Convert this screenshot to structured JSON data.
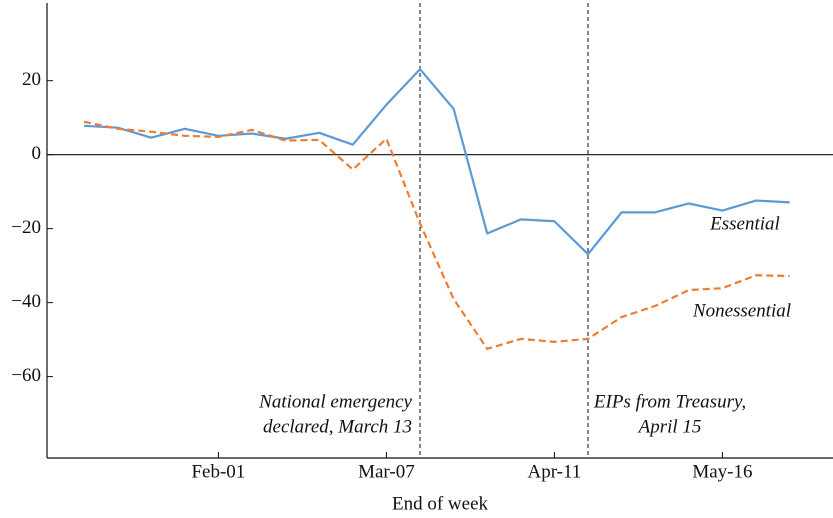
{
  "chart_data": {
    "type": "line",
    "x_label": "End of week",
    "categories": [
      null,
      null,
      null,
      null,
      "Feb-01",
      null,
      null,
      null,
      null,
      "Mar-07",
      null,
      null,
      null,
      null,
      "Apr-11",
      null,
      null,
      null,
      null,
      "May-16",
      null,
      null
    ],
    "series": [
      {
        "name": "Essential",
        "color": "#5b9bd5",
        "dash": false,
        "values": [
          7.8,
          7.3,
          4.6,
          7.0,
          5.1,
          5.7,
          4.3,
          5.9,
          2.7,
          13.5,
          23.1,
          12.4,
          -21.3,
          -17.5,
          -18.0,
          -26.9,
          -15.6,
          -15.6,
          -13.2,
          -15.1,
          -12.4,
          -12.9
        ]
      },
      {
        "name": "Nonessential",
        "color": "#ed7d31",
        "dash": true,
        "values": [
          8.9,
          7.0,
          6.2,
          5.1,
          4.8,
          6.7,
          3.8,
          4.0,
          -4.0,
          4.3,
          -18.6,
          -39.0,
          -52.5,
          -49.8,
          -50.6,
          -49.8,
          -43.9,
          -40.9,
          -36.6,
          -36.1,
          -32.6,
          -32.8
        ]
      }
    ],
    "annotations": [
      {
        "lines": [
          "National emergency",
          "declared, March 13"
        ]
      },
      {
        "lines": [
          "EIPs from Treasury,",
          "April 15"
        ]
      }
    ],
    "ylim": [
      -82,
      41
    ],
    "yticks": [
      {
        "value": -60,
        "label": "−60"
      },
      {
        "value": -40,
        "label": "−40"
      },
      {
        "value": -20,
        "label": "−20"
      },
      0,
      20
    ]
  }
}
